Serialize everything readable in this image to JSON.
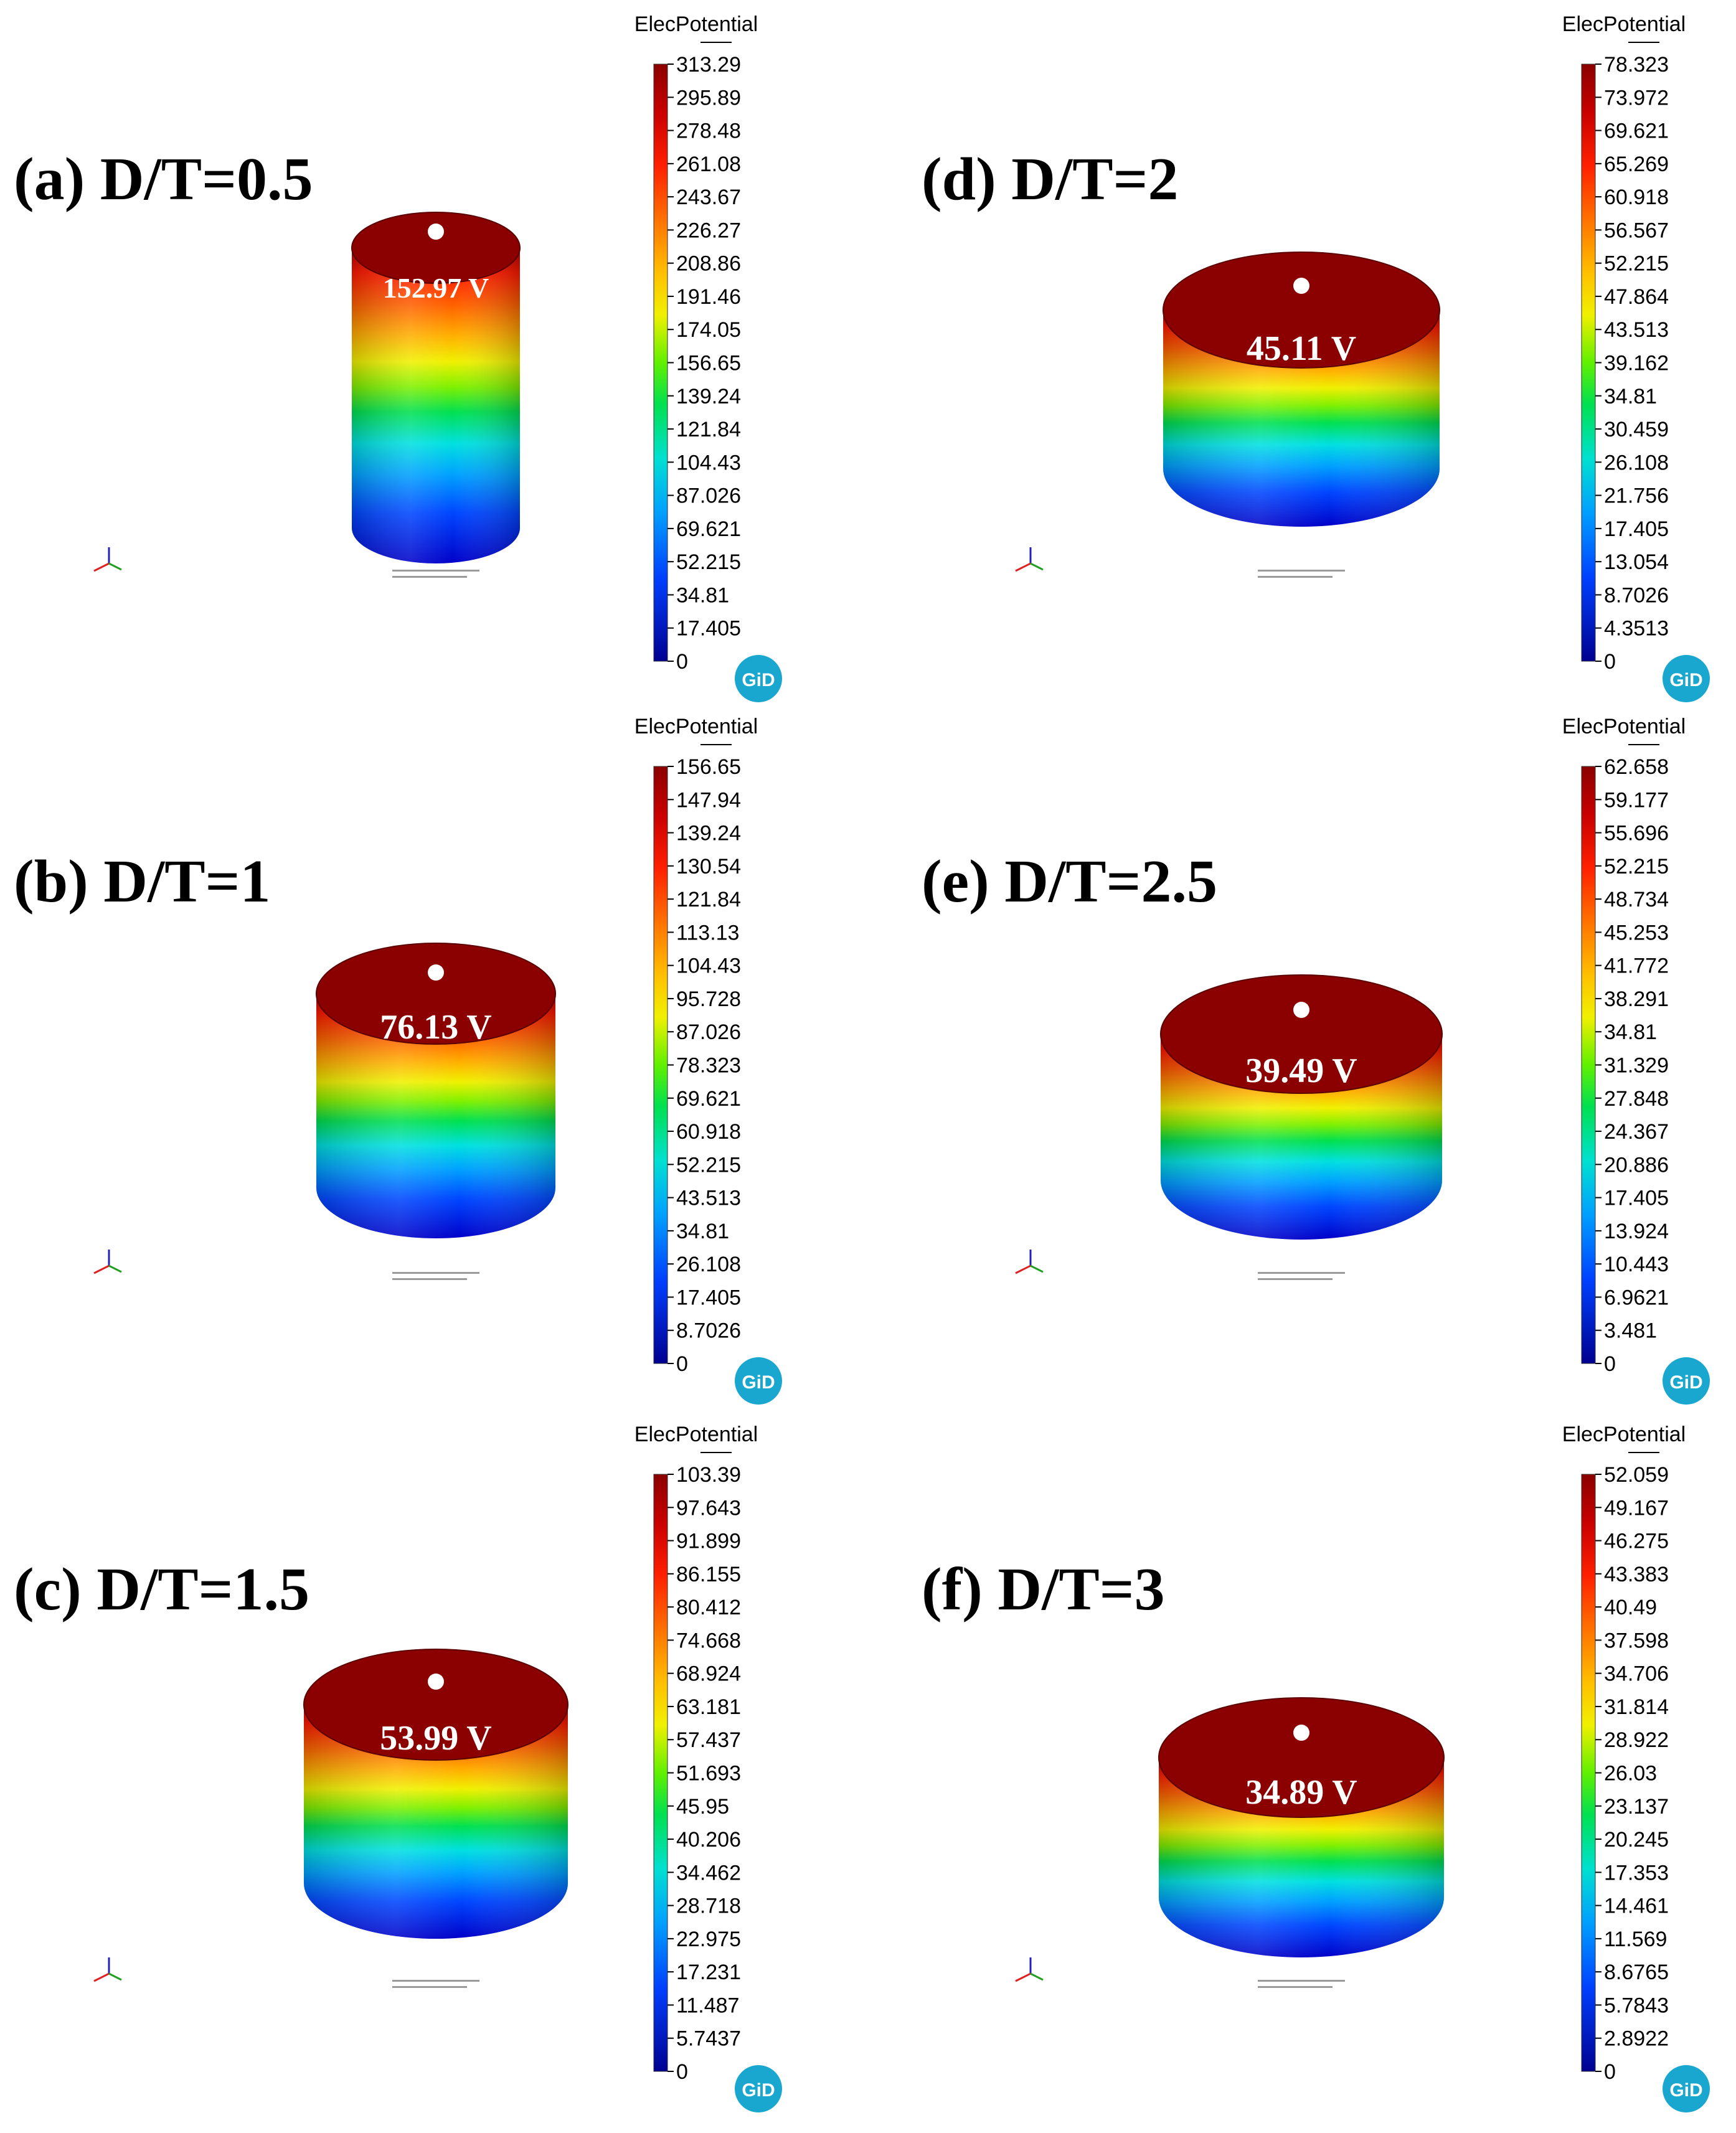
{
  "figure": {
    "colors": {
      "background": "#ffffff",
      "top_face": "#8b0000",
      "colormap": [
        "#0000c8",
        "#0046ff",
        "#00a0ff",
        "#00e0e0",
        "#00e050",
        "#80f000",
        "#f0f000",
        "#ffb000",
        "#ff6000",
        "#ff1a00",
        "#b40000",
        "#8b0000"
      ],
      "logo": "#1aa7cf",
      "axis_x": "#e02020",
      "axis_y": "#20a020",
      "axis_z": "#2020c0"
    },
    "panels": [
      {
        "id": "a",
        "label": "(a) D/T=0.5",
        "top_value": "152.97 V",
        "legend": {
          "title": "ElecPotential",
          "ticks": [
            "313.29",
            "295.89",
            "278.48",
            "261.08",
            "243.67",
            "226.27",
            "208.86",
            "191.46",
            "174.05",
            "156.65",
            "139.24",
            "121.84",
            "104.43",
            "87.026",
            "69.621",
            "52.215",
            "34.81",
            "17.405",
            "0"
          ]
        },
        "logo": "GiD",
        "icons": [
          "axis-triad-icon",
          "gid-logo-icon"
        ]
      },
      {
        "id": "b",
        "label": "(b) D/T=1",
        "top_value": "76.13 V",
        "legend": {
          "title": "ElecPotential",
          "ticks": [
            "156.65",
            "147.94",
            "139.24",
            "130.54",
            "121.84",
            "113.13",
            "104.43",
            "95.728",
            "87.026",
            "78.323",
            "69.621",
            "60.918",
            "52.215",
            "43.513",
            "34.81",
            "26.108",
            "17.405",
            "8.7026",
            "0"
          ]
        },
        "logo": "GiD",
        "icons": [
          "axis-triad-icon",
          "gid-logo-icon"
        ]
      },
      {
        "id": "c",
        "label": "(c) D/T=1.5",
        "top_value": "53.99 V",
        "legend": {
          "title": "ElecPotential",
          "ticks": [
            "103.39",
            "97.643",
            "91.899",
            "86.155",
            "80.412",
            "74.668",
            "68.924",
            "63.181",
            "57.437",
            "51.693",
            "45.95",
            "40.206",
            "34.462",
            "28.718",
            "22.975",
            "17.231",
            "11.487",
            "5.7437",
            "0"
          ]
        },
        "logo": "GiD",
        "icons": [
          "axis-triad-icon",
          "gid-logo-icon"
        ]
      },
      {
        "id": "d",
        "label": "(d) D/T=2",
        "top_value": "45.11 V",
        "legend": {
          "title": "ElecPotential",
          "ticks": [
            "78.323",
            "73.972",
            "69.621",
            "65.269",
            "60.918",
            "56.567",
            "52.215",
            "47.864",
            "43.513",
            "39.162",
            "34.81",
            "30.459",
            "26.108",
            "21.756",
            "17.405",
            "13.054",
            "8.7026",
            "4.3513",
            "0"
          ]
        },
        "logo": "GiD",
        "icons": [
          "axis-triad-icon",
          "gid-logo-icon"
        ]
      },
      {
        "id": "e",
        "label": "(e) D/T=2.5",
        "top_value": "39.49 V",
        "legend": {
          "title": "ElecPotential",
          "ticks": [
            "62.658",
            "59.177",
            "55.696",
            "52.215",
            "48.734",
            "45.253",
            "41.772",
            "38.291",
            "34.81",
            "31.329",
            "27.848",
            "24.367",
            "20.886",
            "17.405",
            "13.924",
            "10.443",
            "6.9621",
            "3.481",
            "0"
          ]
        },
        "logo": "GiD",
        "icons": [
          "axis-triad-icon",
          "gid-logo-icon"
        ]
      },
      {
        "id": "f",
        "label": "(f) D/T=3",
        "top_value": "34.89 V",
        "legend": {
          "title": "ElecPotential",
          "ticks": [
            "52.059",
            "49.167",
            "46.275",
            "43.383",
            "40.49",
            "37.598",
            "34.706",
            "31.814",
            "28.922",
            "26.03",
            "23.137",
            "20.245",
            "17.353",
            "14.461",
            "11.569",
            "8.6765",
            "5.7843",
            "2.8922",
            "0"
          ]
        },
        "logo": "GiD",
        "icons": [
          "axis-triad-icon",
          "gid-logo-icon"
        ]
      }
    ]
  }
}
